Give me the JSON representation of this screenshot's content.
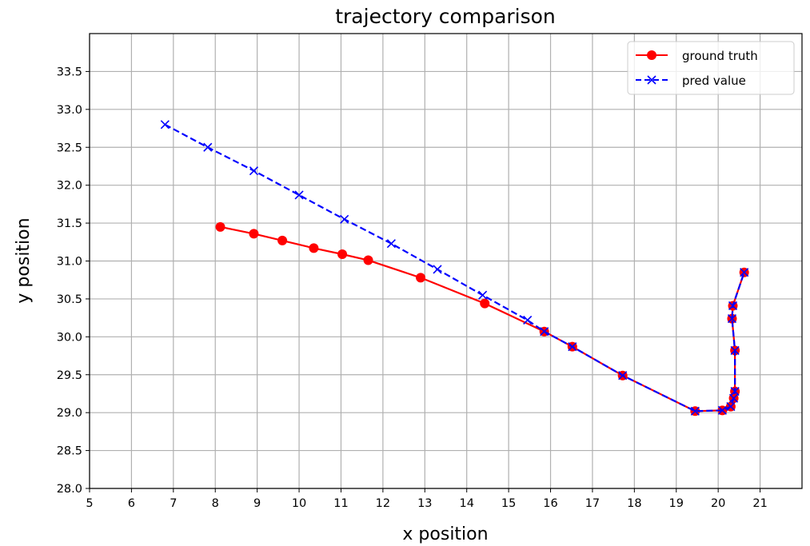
{
  "chart_data": {
    "type": "line",
    "title": "trajectory comparison",
    "xlabel": "x position",
    "ylabel": "y position",
    "xlim": [
      5,
      22
    ],
    "ylim": [
      28.0,
      34.0
    ],
    "xticks": [
      5,
      6,
      7,
      8,
      9,
      10,
      11,
      12,
      13,
      14,
      15,
      16,
      17,
      18,
      19,
      20,
      21
    ],
    "yticks": [
      28.0,
      28.5,
      29.0,
      29.5,
      30.0,
      30.5,
      31.0,
      31.5,
      32.0,
      32.5,
      33.0,
      33.5
    ],
    "xtick_labels": [
      "5",
      "6",
      "7",
      "8",
      "9",
      "10",
      "11",
      "12",
      "13",
      "14",
      "15",
      "16",
      "17",
      "18",
      "19",
      "20",
      "21"
    ],
    "ytick_labels": [
      "28.0",
      "28.5",
      "29.0",
      "29.5",
      "30.0",
      "30.5",
      "31.0",
      "31.5",
      "32.0",
      "32.5",
      "33.0",
      "33.5"
    ],
    "grid": true,
    "legend_position": "top-right",
    "series": [
      {
        "name": "ground truth",
        "color": "#ff0000",
        "linestyle": "solid",
        "marker": "circle",
        "points": [
          [
            8.12,
            31.45
          ],
          [
            8.92,
            31.36
          ],
          [
            9.6,
            31.27
          ],
          [
            10.35,
            31.17
          ],
          [
            11.03,
            31.09
          ],
          [
            11.65,
            31.01
          ],
          [
            12.9,
            30.78
          ],
          [
            14.43,
            30.44
          ],
          [
            15.85,
            30.07
          ],
          [
            16.52,
            29.87
          ],
          [
            17.72,
            29.49
          ],
          [
            19.45,
            29.02
          ],
          [
            20.1,
            29.03
          ],
          [
            20.3,
            29.08
          ],
          [
            20.37,
            29.19
          ],
          [
            20.4,
            29.28
          ],
          [
            20.4,
            29.82
          ],
          [
            20.33,
            30.24
          ],
          [
            20.35,
            30.41
          ],
          [
            20.62,
            30.85
          ]
        ]
      },
      {
        "name": "pred value",
        "color": "#0000ff",
        "linestyle": "dashed",
        "marker": "x",
        "points": [
          [
            6.8,
            32.8
          ],
          [
            7.82,
            32.5
          ],
          [
            8.92,
            32.19
          ],
          [
            10.0,
            31.87
          ],
          [
            11.08,
            31.55
          ],
          [
            12.2,
            31.23
          ],
          [
            13.3,
            30.89
          ],
          [
            14.38,
            30.55
          ],
          [
            15.45,
            30.22
          ],
          [
            15.85,
            30.07
          ],
          [
            16.52,
            29.87
          ],
          [
            17.72,
            29.49
          ],
          [
            19.45,
            29.02
          ],
          [
            20.1,
            29.03
          ],
          [
            20.3,
            29.08
          ],
          [
            20.37,
            29.19
          ],
          [
            20.4,
            29.28
          ],
          [
            20.4,
            29.82
          ],
          [
            20.33,
            30.24
          ],
          [
            20.35,
            30.41
          ],
          [
            20.62,
            30.85
          ]
        ]
      }
    ]
  }
}
